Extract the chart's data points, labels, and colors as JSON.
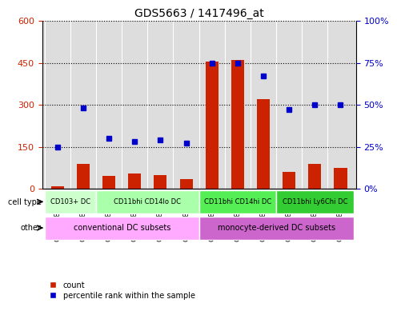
{
  "title": "GDS5663 / 1417496_at",
  "samples": [
    "GSM1582752",
    "GSM1582753",
    "GSM1582754",
    "GSM1582755",
    "GSM1582756",
    "GSM1582757",
    "GSM1582758",
    "GSM1582759",
    "GSM1582760",
    "GSM1582761",
    "GSM1582762",
    "GSM1582763"
  ],
  "counts": [
    8,
    90,
    45,
    55,
    50,
    35,
    455,
    460,
    320,
    60,
    90,
    75
  ],
  "percentiles": [
    25,
    48,
    30,
    28,
    29,
    27,
    75,
    75,
    67,
    47,
    50,
    50
  ],
  "ylim_left": [
    0,
    600
  ],
  "ylim_right": [
    0,
    100
  ],
  "yticks_left": [
    0,
    150,
    300,
    450,
    600
  ],
  "yticks_right": [
    0,
    25,
    50,
    75,
    100
  ],
  "bar_color": "#cc2200",
  "dot_color": "#0000cc",
  "cell_type_groups": [
    {
      "label": "CD103+ DC",
      "start": 0,
      "end": 2,
      "color": "#ccffcc"
    },
    {
      "label": "CD11bhi CD14lo DC",
      "start": 2,
      "end": 6,
      "color": "#aaffaa"
    },
    {
      "label": "CD11bhi CD14hi DC",
      "start": 6,
      "end": 9,
      "color": "#55ee55"
    },
    {
      "label": "CD11bhi Ly6Chi DC",
      "start": 9,
      "end": 12,
      "color": "#33cc33"
    }
  ],
  "other_groups": [
    {
      "label": "conventional DC subsets",
      "start": 0,
      "end": 6,
      "color": "#ffaaff"
    },
    {
      "label": "monocyte-derived DC subsets",
      "start": 6,
      "end": 12,
      "color": "#cc66cc"
    }
  ],
  "bg_color": "#dddddd",
  "grid_color": "#000000",
  "legend_items": [
    {
      "color": "#cc2200",
      "label": "count"
    },
    {
      "color": "#0000cc",
      "label": "percentile rank within the sample"
    }
  ]
}
